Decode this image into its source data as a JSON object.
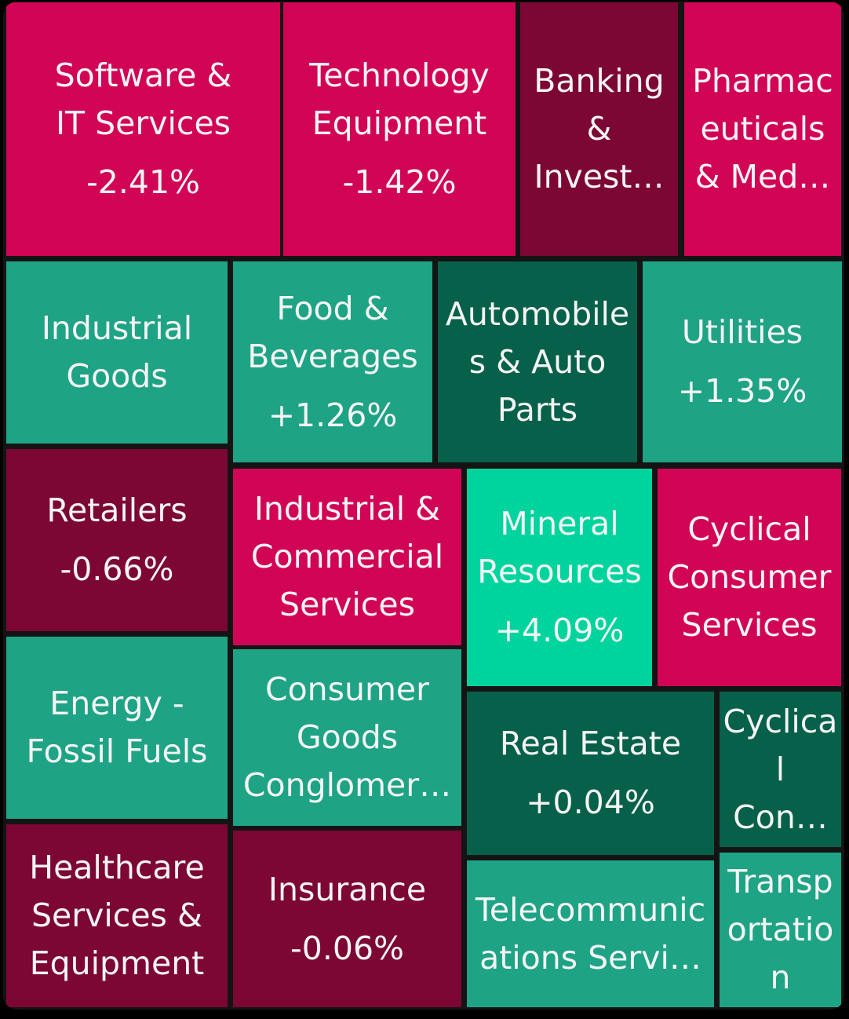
{
  "chart_data": {
    "type": "treemap",
    "colors": {
      "strong_down": "#d10456",
      "down": "#7c0634",
      "up": "#1ea385",
      "slight_up": "#07604a",
      "strong_up": "#00d49e"
    },
    "tiles": [
      {
        "name": "Software &\nIT Services",
        "change": "-2.41%",
        "color": "#d10456"
      },
      {
        "name": "Technology\nEquipment",
        "change": "-1.42%",
        "color": "#d10456"
      },
      {
        "name": "Banking\n&\nInvest…",
        "change": "",
        "color": "#7c0634"
      },
      {
        "name": "Pharmac\neuticals\n& Med…",
        "change": "",
        "color": "#d10456"
      },
      {
        "name": "Industrial\nGoods",
        "change": "",
        "color": "#1ea385"
      },
      {
        "name": "Food &\nBeverages",
        "change": "+1.26%",
        "color": "#1ea385"
      },
      {
        "name": "Automobile\ns & Auto\nParts",
        "change": "",
        "color": "#07604a"
      },
      {
        "name": "Utilities",
        "change": "+1.35%",
        "color": "#1ea385"
      },
      {
        "name": "Retailers",
        "change": "-0.66%",
        "color": "#7c0634"
      },
      {
        "name": "Industrial &\nCommercial\nServices",
        "change": "",
        "color": "#d10456"
      },
      {
        "name": "Mineral\nResources",
        "change": "+4.09%",
        "color": "#00d49e"
      },
      {
        "name": "Cyclical\nConsumer\nServices",
        "change": "",
        "color": "#d10456"
      },
      {
        "name": "Energy -\nFossil Fuels",
        "change": "",
        "color": "#1ea385"
      },
      {
        "name": "Consumer\nGoods\nConglomer…",
        "change": "",
        "color": "#1ea385"
      },
      {
        "name": "Real Estate",
        "change": "+0.04%",
        "color": "#07604a"
      },
      {
        "name": "Cyclica\nl\nCon…",
        "change": "",
        "color": "#07604a"
      },
      {
        "name": "Healthcare\nServices &\nEquipment",
        "change": "",
        "color": "#7c0634"
      },
      {
        "name": "Insurance",
        "change": "-0.06%",
        "color": "#7c0634"
      },
      {
        "name": "Telecommunic\nations Servi…",
        "change": "",
        "color": "#1ea385"
      },
      {
        "name": "Transp\nortatio\nn",
        "change": "",
        "color": "#1ea385"
      }
    ]
  }
}
